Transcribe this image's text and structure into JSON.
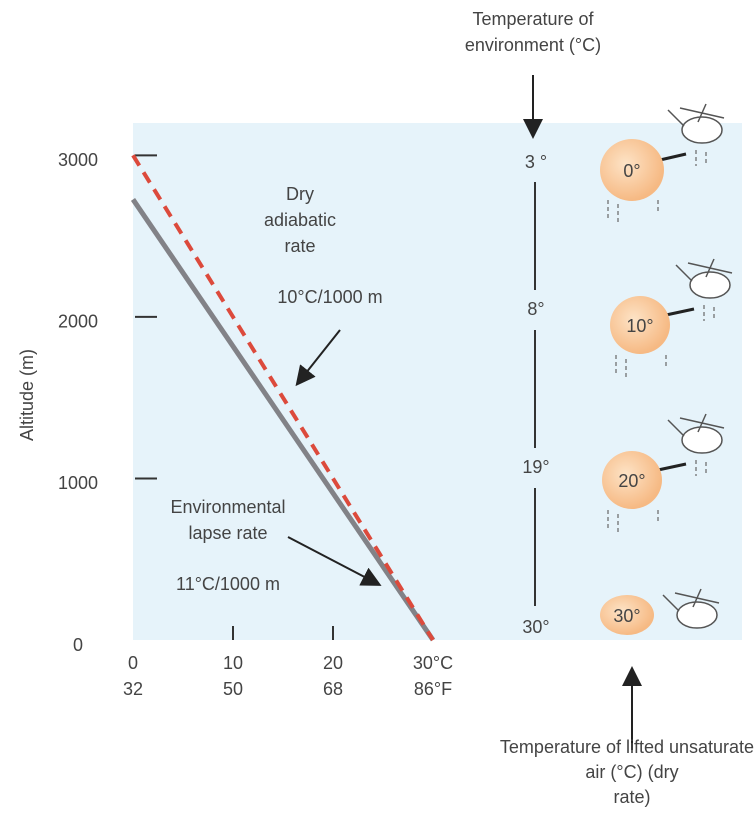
{
  "chart_data": {
    "type": "line",
    "y_label": "Altitude (m)",
    "x": [
      0,
      30
    ],
    "series": [
      {
        "name": "Dry adiabatic rate",
        "rate_label": "10°C/1000 m",
        "color": "#dc4a3c",
        "dashed": true,
        "values": [
          3000,
          0
        ]
      },
      {
        "name": "Environmental lapse rate",
        "rate_label": "11°C/1000 m",
        "color": "#828287",
        "dashed": false,
        "values": [
          2727,
          0
        ]
      }
    ],
    "xlim": [
      0,
      30
    ],
    "ylim": [
      0,
      3200
    ],
    "xticks": [
      {
        "value": 0,
        "label": "0",
        "label2": "32"
      },
      {
        "value": 10,
        "label": "10",
        "label2": "50"
      },
      {
        "value": 20,
        "label": "20",
        "label2": "68"
      },
      {
        "value": 30,
        "label": "30°C",
        "label2": "86°F"
      }
    ],
    "yticks": [
      0,
      1000,
      2000,
      3000
    ],
    "environment": {
      "title": "Temperature of environment (°C)",
      "temps": [
        "3 °",
        "8°",
        "19°",
        "30°"
      ]
    },
    "parcel": {
      "title": "Temperature of lifted unsaturated air (°C) (dry rate)",
      "temps": [
        "0°",
        "10°",
        "20°",
        "30°"
      ]
    }
  }
}
